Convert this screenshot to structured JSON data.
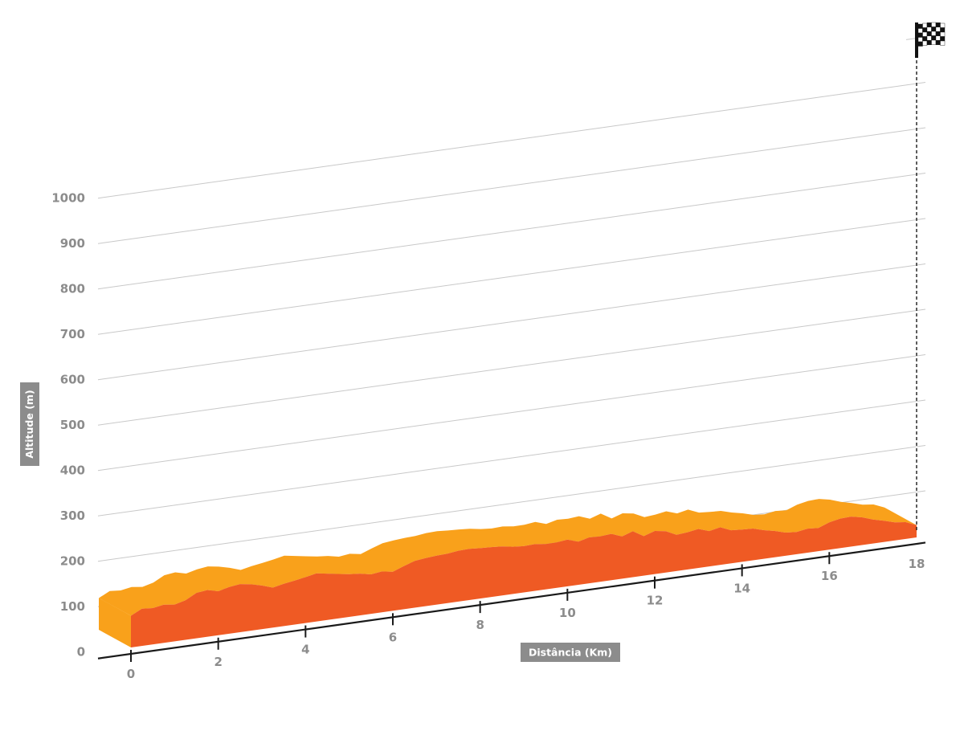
{
  "chart_data": {
    "type": "area",
    "ylabel": "Altitude (m)",
    "xlabel": "Distância (Km)",
    "y_ticks": [
      "0",
      "100",
      "200",
      "300",
      "400",
      "500",
      "600",
      "700",
      "800",
      "900",
      "1000"
    ],
    "x_ticks": [
      "0",
      "2",
      "4",
      "6",
      "8",
      "10",
      "12",
      "14",
      "16",
      "18"
    ],
    "xlim": [
      0,
      18
    ],
    "ylim": [
      0,
      1000
    ],
    "grid": true,
    "finish_marker": "checkered-flag-icon",
    "colors": {
      "top_face": "#f9a11b",
      "side_face": "#ef5a24",
      "grid": "#c8c8c8",
      "axis": "#1a1a1a",
      "label": "#8c8c8c",
      "badge": "#8c8c8c"
    },
    "profile": {
      "x": [
        0,
        0.25,
        0.5,
        0.75,
        1.0,
        1.25,
        1.5,
        1.75,
        2.0,
        2.25,
        2.5,
        2.75,
        3.0,
        3.25,
        3.5,
        3.75,
        4.0,
        4.25,
        4.5,
        4.75,
        5.0,
        5.25,
        5.5,
        5.75,
        6.0,
        6.25,
        6.5,
        6.75,
        7.0,
        7.25,
        7.5,
        7.75,
        8.0,
        8.25,
        8.5,
        8.75,
        9.0,
        9.25,
        9.5,
        9.75,
        10.0,
        10.25,
        10.5,
        10.75,
        11.0,
        11.25,
        11.5,
        11.75,
        12.0,
        12.25,
        12.5,
        12.75,
        13.0,
        13.25,
        13.5,
        13.75,
        14.0,
        14.25,
        14.5,
        14.75,
        15.0,
        15.25,
        15.5,
        15.75,
        16.0,
        16.25,
        16.5,
        16.75,
        17.0,
        17.25,
        17.5,
        17.75,
        18.0
      ],
      "y": [
        70,
        82,
        80,
        84,
        81,
        87,
        100,
        103,
        97,
        103,
        106,
        102,
        96,
        88,
        93,
        97,
        101,
        106,
        102,
        98,
        94,
        92,
        87,
        90,
        86,
        95,
        103,
        106,
        108,
        109,
        112,
        113,
        111,
        110,
        108,
        104,
        102,
        103,
        100,
        100,
        103,
        95,
        101,
        100,
        102,
        93,
        101,
        87,
        95,
        91,
        80,
        82,
        86,
        78,
        83,
        73,
        71,
        70,
        63,
        58,
        51,
        49,
        53,
        51,
        60,
        65,
        66,
        61,
        53,
        47,
        40,
        37,
        27
      ]
    }
  }
}
